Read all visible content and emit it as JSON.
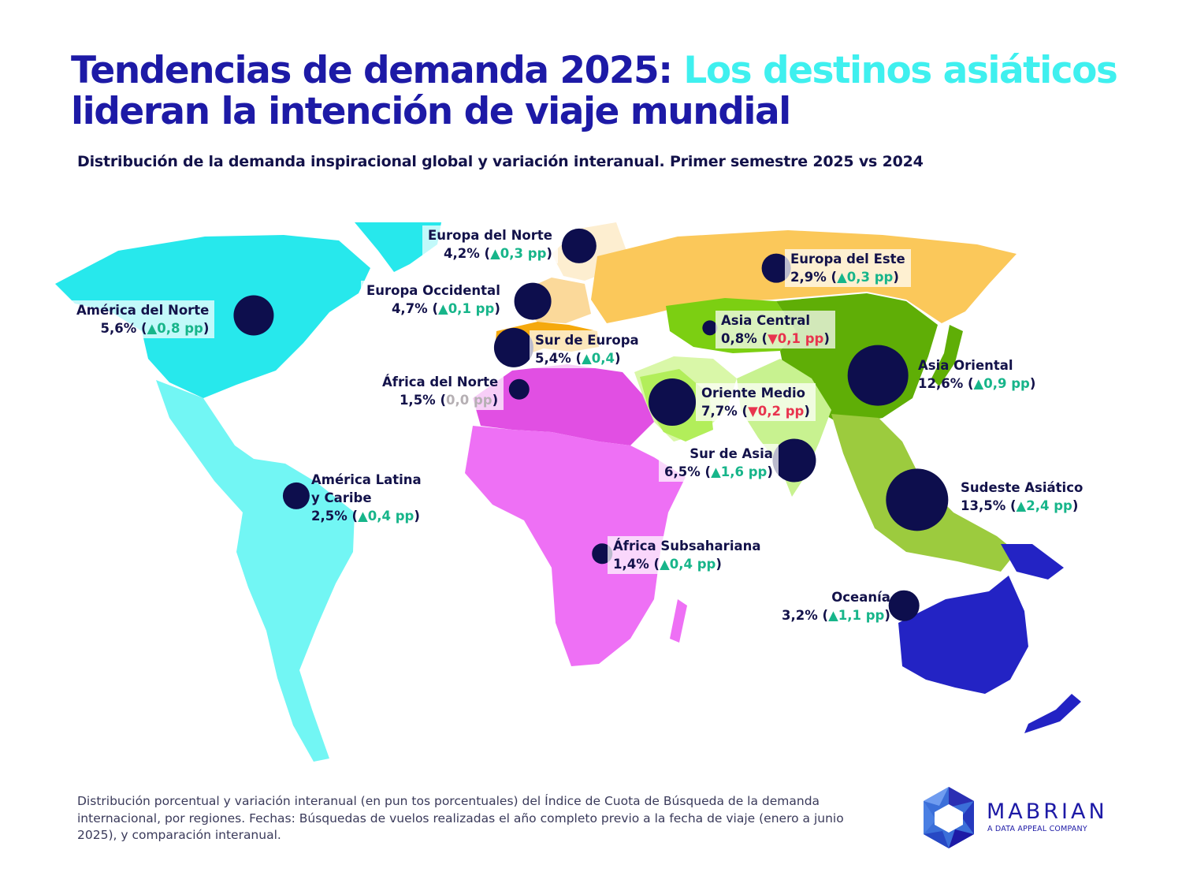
{
  "title": {
    "part1": "Tendencias de demanda 2025: ",
    "highlight": "Los destinos asiáticos",
    "part2": " lideran la intención de viaje mundial"
  },
  "subtitle": "Distribución de la demanda inspiracional global y variación interanual. Primer semestre 2025 vs 2024",
  "regions": [
    {
      "id": "america-norte",
      "name": "América del Norte",
      "share": "5,6%",
      "change": "▲0,8 pp",
      "trend": "up",
      "value": 5.6,
      "color": "#27e8ec"
    },
    {
      "id": "america-latina",
      "name": "América Latina y Caribe",
      "name_lines": [
        "América Latina",
        "y Caribe"
      ],
      "share": "2,5%",
      "change": "▲0,4 pp",
      "trend": "up",
      "value": 2.5,
      "color": "#72f6f4"
    },
    {
      "id": "europa-norte",
      "name": "Europa del Norte",
      "share": "4,2%",
      "change": "▲0,3 pp",
      "trend": "up",
      "value": 4.2,
      "color": "#fdeed0"
    },
    {
      "id": "europa-occidental",
      "name": "Europa Occidental",
      "share": "4,7%",
      "change": "▲0,1 pp",
      "trend": "up",
      "value": 4.7,
      "color": "#fbd99a"
    },
    {
      "id": "sur-europa",
      "name": "Sur de Europa",
      "share": "5,4%",
      "change": "▲0,4",
      "trend": "up",
      "value": 5.4,
      "color": "#f5a90d"
    },
    {
      "id": "europa-este",
      "name": "Europa del Este",
      "share": "2,9%",
      "change": "▲0,3 pp",
      "trend": "up",
      "value": 2.9,
      "color": "#fbc85a"
    },
    {
      "id": "africa-norte",
      "name": "África del Norte",
      "share": "1,5%",
      "change": "0,0 pp",
      "trend": "flat",
      "value": 1.5,
      "color": "#e14fe3"
    },
    {
      "id": "africa-subsahariana",
      "name": "África Subsahariana",
      "share": "1,4%",
      "change": "▲0,4 pp",
      "trend": "up",
      "value": 1.4,
      "color": "#ee70f5"
    },
    {
      "id": "asia-central",
      "name": "Asia Central",
      "share": "0,8%",
      "change": "▼0,1 pp",
      "trend": "down",
      "value": 0.8,
      "color": "#7ccf12"
    },
    {
      "id": "oriente-medio",
      "name": "Oriente Medio",
      "share": "7,7%",
      "change": "▼0,2 pp",
      "trend": "down",
      "value": 7.7,
      "color": "#d9f7a8"
    },
    {
      "id": "sur-asia",
      "name": "Sur de Asia",
      "share": "6,5%",
      "change": "▲1,6 pp",
      "trend": "up",
      "value": 6.5,
      "color": "#c8f290"
    },
    {
      "id": "asia-oriental",
      "name": "Asia Oriental",
      "share": "12,6%",
      "change": "▲0,9 pp",
      "trend": "up",
      "value": 12.6,
      "color": "#5fae06"
    },
    {
      "id": "sudeste-asiatico",
      "name": "Sudeste Asiático",
      "share": "13,5%",
      "change": "▲2,4 pp",
      "trend": "up",
      "value": 13.5,
      "color": "#9ccb3e"
    },
    {
      "id": "oceania",
      "name": "Oceanía",
      "share": "3,2%",
      "change": "▲1,1 pp",
      "trend": "up",
      "value": 3.2,
      "color": "#2323c4"
    }
  ],
  "footnote": "Distribución porcentual y variación interanual (en pun tos porcentuales) del Índice de Cuota de Búsqueda de la demanda internacional, por regiones. Fechas: Búsquedas de vuelos realizadas el año completo previo a la fecha de viaje (enero a junio 2025), y comparación interanual.",
  "logo": {
    "brand": "MABRIAN",
    "tagline": "A DATA APPEAL COMPANY"
  }
}
